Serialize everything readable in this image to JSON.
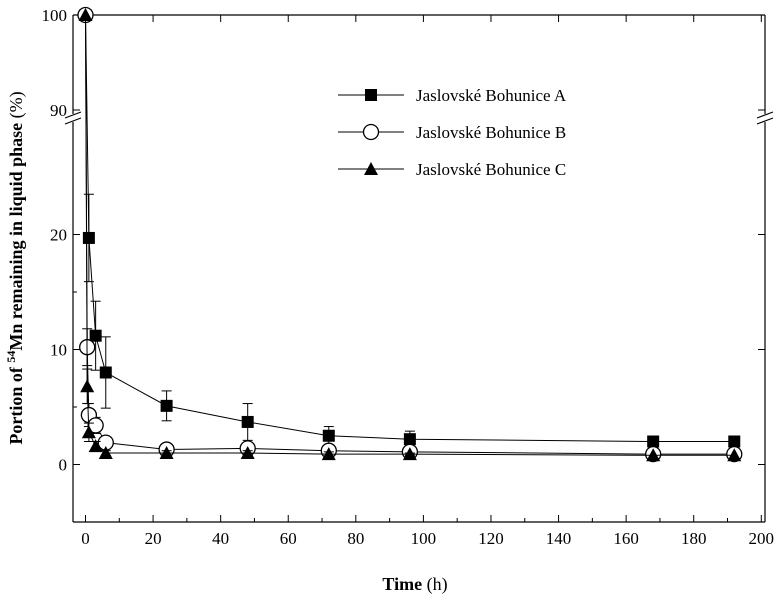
{
  "chart_data": {
    "type": "scatter",
    "xlabel_bold": "Time",
    "xlabel_unit": "(h)",
    "ylabel_prefix": "Portion of ",
    "ylabel_sup": "54",
    "ylabel_suffix": "Mn remaining in liquid phase",
    "ylabel_unit": "(%)",
    "xlim": [
      -5,
      200
    ],
    "xticks": [
      0,
      20,
      40,
      60,
      80,
      100,
      120,
      140,
      160,
      180,
      200
    ],
    "ylim_lower": [
      -5,
      25
    ],
    "yticks_lower": [
      0,
      10,
      20
    ],
    "ylim_upper": [
      90,
      100
    ],
    "yticks_upper": [
      90,
      100
    ],
    "y_axis_break": true,
    "grid": false,
    "legend_position": "top-right",
    "series": [
      {
        "name": "Jaslovské Bohunice A",
        "marker": "square-filled",
        "x": [
          0,
          1,
          3,
          6,
          24,
          48,
          72,
          96,
          168,
          192
        ],
        "y": [
          100,
          19.7,
          11.2,
          8.0,
          5.1,
          3.7,
          2.5,
          2.2,
          2.0,
          2.0
        ],
        "err": [
          0,
          3.8,
          3.0,
          3.1,
          1.3,
          1.6,
          0.8,
          0.7,
          0,
          0
        ]
      },
      {
        "name": "Jaslovské Bohunice B",
        "marker": "circle-open",
        "x": [
          0,
          0.5,
          1,
          3,
          6,
          24,
          48,
          72,
          96,
          168,
          192
        ],
        "y": [
          100,
          10.2,
          4.3,
          3.4,
          1.9,
          1.3,
          1.4,
          1.2,
          1.1,
          0.9,
          0.9
        ],
        "err": [
          0,
          1.6,
          1.0,
          0.7,
          0.4,
          0.3,
          0.3,
          0.3,
          0.2,
          0,
          0
        ]
      },
      {
        "name": "Jaslovské Bohunice C",
        "marker": "triangle-filled",
        "x": [
          0,
          0.5,
          1,
          3,
          6,
          24,
          48,
          72,
          96,
          168,
          192
        ],
        "y": [
          100,
          6.8,
          2.8,
          1.6,
          1.0,
          1.0,
          1.0,
          0.9,
          0.9,
          0.8,
          0.8
        ],
        "err": [
          0,
          1.5,
          0.8,
          0.4,
          0.2,
          0.2,
          0.2,
          0.2,
          0.1,
          0,
          0
        ]
      }
    ]
  }
}
